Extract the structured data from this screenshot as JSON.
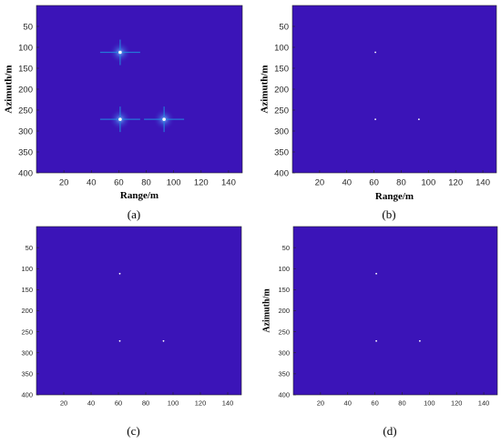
{
  "figure": {
    "colors": {
      "background": "#3b14b8",
      "target": "#ffffff",
      "sidelobe": "#1f8fe0",
      "glow": "#4f7ee8"
    }
  },
  "chart_data": [
    {
      "id": "a",
      "type": "heatmap",
      "caption": "(a)",
      "xlabel": "Range/m",
      "ylabel": "Azimuth/m",
      "xlim": [
        0,
        150
      ],
      "ylim": [
        0,
        400
      ],
      "y_inverted": true,
      "xticks": [
        "20",
        "40",
        "60",
        "80",
        "100",
        "120",
        "140"
      ],
      "yticks": [
        "50",
        "100",
        "150",
        "200",
        "250",
        "300",
        "350",
        "400"
      ],
      "targets": [
        {
          "x": 61,
          "y": 112,
          "spread": "wide"
        },
        {
          "x": 61,
          "y": 272,
          "spread": "wide"
        },
        {
          "x": 93,
          "y": 272,
          "spread": "wide"
        }
      ]
    },
    {
      "id": "b",
      "type": "heatmap",
      "caption": "(b)",
      "xlabel": "Range/m",
      "ylabel": "Azimuth/m",
      "xlim": [
        0,
        150
      ],
      "ylim": [
        0,
        400
      ],
      "y_inverted": true,
      "xticks": [
        "20",
        "40",
        "60",
        "80",
        "100",
        "120",
        "140"
      ],
      "yticks": [
        "50",
        "100",
        "150",
        "200",
        "250",
        "300",
        "350",
        "400"
      ],
      "targets": [
        {
          "x": 61,
          "y": 112,
          "spread": "point"
        },
        {
          "x": 61,
          "y": 272,
          "spread": "point"
        },
        {
          "x": 93,
          "y": 272,
          "spread": "point"
        }
      ]
    },
    {
      "id": "c",
      "type": "heatmap",
      "caption": "(c)",
      "xlabel": "",
      "ylabel": "",
      "xlim": [
        0,
        150
      ],
      "ylim": [
        0,
        400
      ],
      "y_inverted": true,
      "xticks": [
        "20",
        "40",
        "60",
        "80",
        "100",
        "120",
        "140"
      ],
      "yticks": [
        "50",
        "100",
        "150",
        "200",
        "250",
        "300",
        "350",
        "400"
      ],
      "targets": [
        {
          "x": 61,
          "y": 112,
          "spread": "point"
        },
        {
          "x": 61,
          "y": 272,
          "spread": "point"
        },
        {
          "x": 93,
          "y": 272,
          "spread": "point"
        }
      ]
    },
    {
      "id": "d",
      "type": "heatmap",
      "caption": "(d)",
      "xlabel": "",
      "ylabel": "Azimuth/m",
      "xlim": [
        0,
        150
      ],
      "ylim": [
        0,
        400
      ],
      "y_inverted": true,
      "xticks": [
        "20",
        "40",
        "60",
        "80",
        "100",
        "120",
        "140"
      ],
      "yticks": [
        "50",
        "100",
        "150",
        "200",
        "250",
        "300",
        "350",
        "400"
      ],
      "targets": [
        {
          "x": 61,
          "y": 112,
          "spread": "point"
        },
        {
          "x": 61,
          "y": 272,
          "spread": "point"
        },
        {
          "x": 93,
          "y": 272,
          "spread": "point"
        }
      ]
    }
  ]
}
